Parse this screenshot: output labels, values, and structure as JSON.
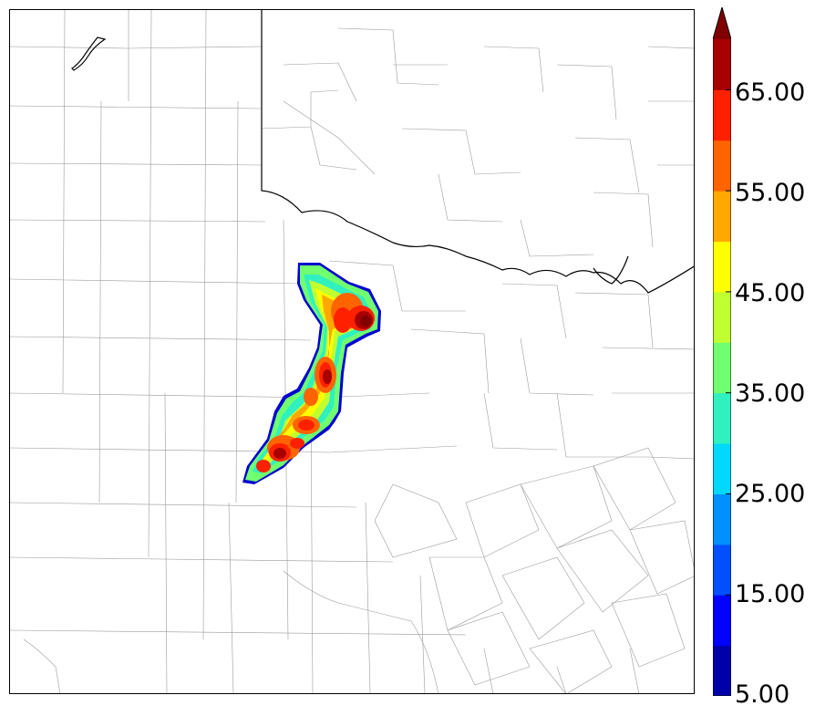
{
  "colorbar": {
    "labels": [
      "65.00",
      "55.00",
      "45.00",
      "35.00",
      "25.00",
      "15.00",
      "5.00"
    ],
    "colors": [
      "#0000a8",
      "#0000ff",
      "#0050ff",
      "#0090ff",
      "#00d8ff",
      "#30f0c0",
      "#70ff70",
      "#c0ff30",
      "#ffff00",
      "#ffa800",
      "#ff6400",
      "#ff2000",
      "#a80000",
      "#800000"
    ]
  }
}
